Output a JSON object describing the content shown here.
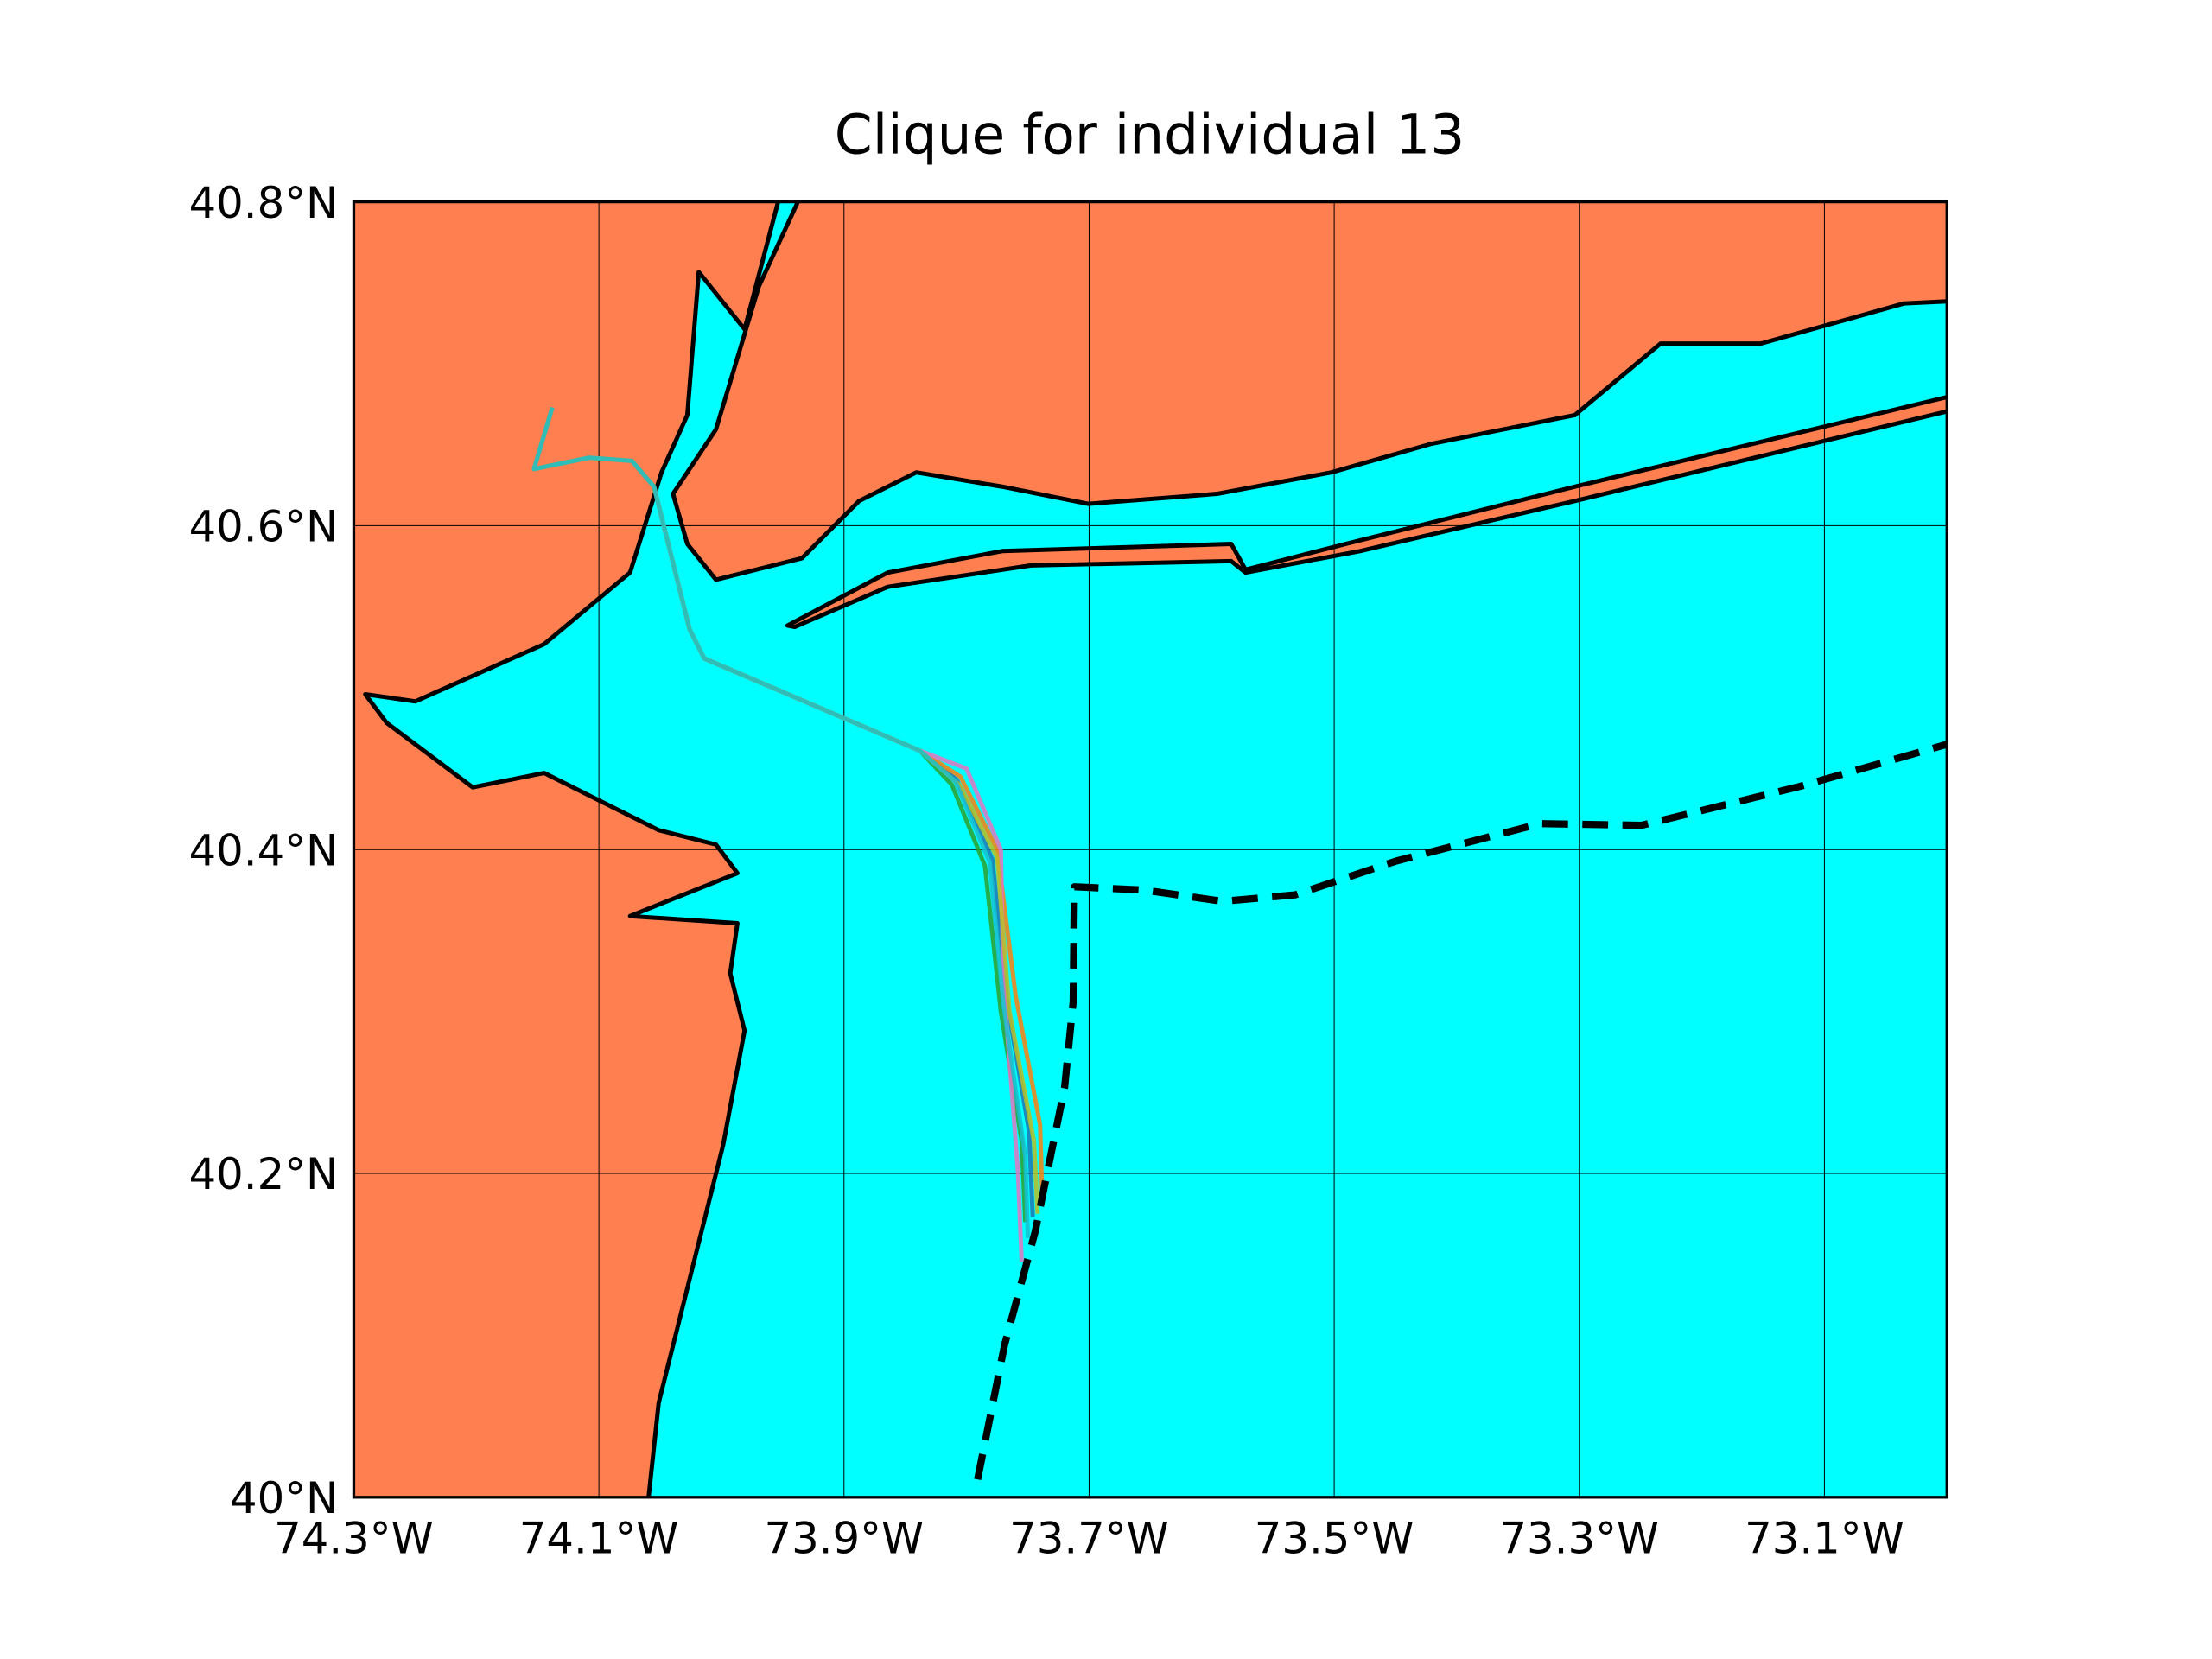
{
  "chart_data": {
    "type": "map",
    "title": "Clique for individual 13",
    "xlim": [
      -74.3,
      -73.0
    ],
    "ylim": [
      40.0,
      40.8
    ],
    "xticks": [
      {
        "value": -74.3,
        "label": "74.3°W"
      },
      {
        "value": -74.1,
        "label": "74.1°W"
      },
      {
        "value": -73.9,
        "label": "73.9°W"
      },
      {
        "value": -73.7,
        "label": "73.7°W"
      },
      {
        "value": -73.5,
        "label": "73.5°W"
      },
      {
        "value": -73.3,
        "label": "73.3°W"
      },
      {
        "value": -73.1,
        "label": "73.1°W"
      }
    ],
    "yticks": [
      {
        "value": 40.0,
        "label": "40°N"
      },
      {
        "value": 40.2,
        "label": "40.2°N"
      },
      {
        "value": 40.4,
        "label": "40.4°N"
      },
      {
        "value": 40.6,
        "label": "40.6°N"
      },
      {
        "value": 40.8,
        "label": "40.8°N"
      }
    ],
    "grid": true,
    "land_color": "#ff7f50",
    "water_color": "#00ffff",
    "series": [
      {
        "color": "#1f77b4",
        "linestyle": "solid",
        "x": [
          -74.138,
          -74.153,
          -74.108,
          -74.073,
          -74.055,
          -74.026,
          -74.014,
          -73.838,
          -73.808,
          -73.779,
          -73.767,
          -73.749,
          -73.746
        ],
        "values": [
          40.673,
          40.635,
          40.642,
          40.64,
          40.624,
          40.536,
          40.518,
          40.461,
          40.443,
          40.394,
          40.306,
          40.226,
          40.173
        ]
      },
      {
        "color": "#ff7f0e",
        "linestyle": "solid",
        "x": [
          -74.138,
          -74.153,
          -74.108,
          -74.073,
          -74.055,
          -74.026,
          -74.014,
          -73.838,
          -73.805,
          -73.775,
          -73.76,
          -73.74,
          -73.738
        ],
        "values": [
          40.673,
          40.635,
          40.642,
          40.64,
          40.624,
          40.536,
          40.518,
          40.461,
          40.445,
          40.4,
          40.31,
          40.23,
          40.18
        ]
      },
      {
        "color": "#2ca02c",
        "linestyle": "solid",
        "x": [
          -74.138,
          -74.153,
          -74.108,
          -74.073,
          -74.055,
          -74.026,
          -74.014,
          -73.838,
          -73.812,
          -73.785,
          -73.772,
          -73.755,
          -73.752
        ],
        "values": [
          40.673,
          40.635,
          40.642,
          40.64,
          40.624,
          40.536,
          40.518,
          40.461,
          40.44,
          40.39,
          40.3,
          40.22,
          40.17
        ]
      },
      {
        "color": "#e377c2",
        "linestyle": "solid",
        "x": [
          -74.138,
          -74.153,
          -74.108,
          -74.073,
          -74.055,
          -74.026,
          -74.014,
          -73.838,
          -73.8,
          -73.772,
          -73.77,
          -73.758,
          -73.755
        ],
        "values": [
          40.673,
          40.635,
          40.642,
          40.64,
          40.624,
          40.536,
          40.518,
          40.461,
          40.45,
          40.4,
          40.32,
          40.2,
          40.145
        ]
      },
      {
        "color": "#bcbd22",
        "linestyle": "solid",
        "x": [
          -74.138,
          -74.153,
          -74.108,
          -74.073,
          -74.055,
          -74.026,
          -74.014,
          -73.838,
          -73.806,
          -73.775,
          -73.765,
          -73.745,
          -73.742
        ],
        "values": [
          40.673,
          40.635,
          40.642,
          40.64,
          40.624,
          40.536,
          40.518,
          40.461,
          40.44,
          40.395,
          40.3,
          40.22,
          40.175
        ]
      },
      {
        "color": "#17becf",
        "linestyle": "solid",
        "x": [
          -74.138,
          -74.153,
          -74.108,
          -74.073,
          -74.055,
          -74.026,
          -74.014,
          -73.838,
          -73.809,
          -73.781,
          -73.77,
          -73.752,
          -73.75
        ],
        "values": [
          40.673,
          40.635,
          40.642,
          40.64,
          40.624,
          40.536,
          40.518,
          40.461,
          40.442,
          40.392,
          40.305,
          40.21,
          40.16
        ]
      },
      {
        "color": "#000000",
        "linestyle": "dashed",
        "x": [
          -73.791,
          -73.769,
          -73.744,
          -73.72,
          -73.713,
          -73.712,
          -73.655,
          -73.591,
          -73.532,
          -73.449,
          -73.332,
          -73.249,
          -73.12,
          -73.0
        ],
        "values": [
          40.011,
          40.094,
          40.164,
          40.253,
          40.306,
          40.377,
          40.375,
          40.368,
          40.372,
          40.393,
          40.416,
          40.415,
          40.439,
          40.465
        ]
      }
    ]
  }
}
